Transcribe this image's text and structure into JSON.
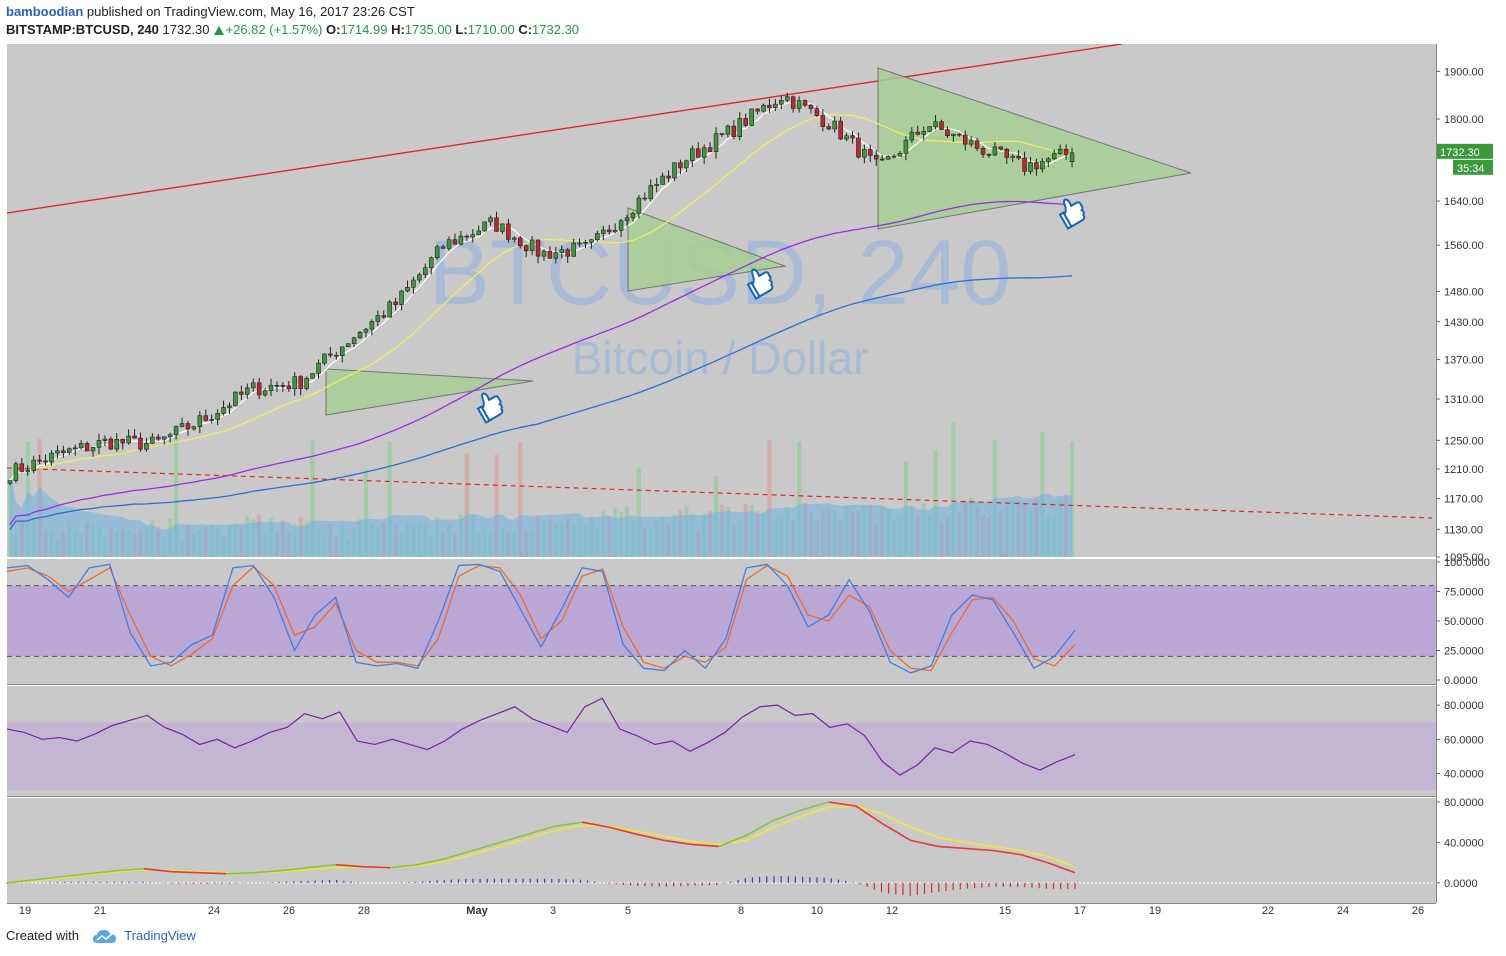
{
  "header": {
    "author": "bamboodian",
    "published_text": "published on TradingView.com, May 16, 2017 23:26 CST",
    "symbol": "BITSTAMP:BTCUSD, 240",
    "last": "1732.30",
    "change": "+26.82 (+1.57%)",
    "o_label": "O:",
    "o_value": "1714.99",
    "h_label": "H:",
    "h_value": "1735.00",
    "l_label": "L:",
    "l_value": "1710.00",
    "c_label": "C:",
    "c_value": "1732.30"
  },
  "footer": {
    "created_with": "Created with",
    "brand": "TradingView"
  },
  "watermark": {
    "symbol": "BTCUSD, 240",
    "name": "Bitcoin / Dollar"
  },
  "price_badge": {
    "value": "1732.30",
    "countdown": "35:34"
  },
  "colors": {
    "bull_candle": "#3a9a3a",
    "bear_candle": "#c0262b",
    "background": "#c9c9c9",
    "triangle_fill": "#a8cf95",
    "ma_white": "#ffffff",
    "ma_yellow": "#eded60",
    "ma_purple": "#9a2de0",
    "ma_blue": "#2b6fd6",
    "trend_red": "#e02424",
    "volume_green": "#9ccaa3",
    "volume_red": "#d6a5a5",
    "volume_ma": "#6cb3e3",
    "stoch_k": "#3f7fe6",
    "stoch_d": "#f06a2a",
    "stoch_band": "#b89fd9",
    "rsi_line": "#7b1fa2",
    "rsi_band": "#c2b4d4",
    "macd_fast_up": "#8bc34a",
    "macd_fast_down": "#e53935",
    "macd_signal": "#f0e637",
    "hist_up": "#3040c8",
    "hist_down": "#d32f2f",
    "hand_icon": "#1565c0"
  },
  "chart_data": [
    {
      "type": "candlestick",
      "title": "BITSTAMP:BTCUSD, 240",
      "x_tick_labels": [
        "19",
        "21",
        "24",
        "26",
        "28",
        "May",
        "3",
        "5",
        "8",
        "10",
        "12",
        "15",
        "17",
        "19",
        "22",
        "24",
        "26"
      ],
      "y_scale": "log",
      "y_tick_labels": [
        "1900.00",
        "1800.00",
        "1640.00",
        "1560.00",
        "1480.00",
        "1430.00",
        "1370.00",
        "1310.00",
        "1250.00",
        "1210.00",
        "1170.00",
        "1130.00",
        "1095.00"
      ],
      "y_ticks": [
        1900,
        1800,
        1640,
        1560,
        1480,
        1430,
        1370,
        1310,
        1250,
        1210,
        1170,
        1130,
        1095
      ],
      "ylim": [
        1095,
        1960
      ],
      "candle_count": 180,
      "period": "4H",
      "key_closes": [
        {
          "date": "Apr 18",
          "price": 1205
        },
        {
          "date": "Apr 20",
          "price": 1230
        },
        {
          "date": "Apr 21",
          "price": 1248
        },
        {
          "date": "Apr 24",
          "price": 1245
        },
        {
          "date": "Apr 26",
          "price": 1280
        },
        {
          "date": "Apr 27",
          "price": 1325
        },
        {
          "date": "Apr 30",
          "price": 1335
        },
        {
          "date": "May 1",
          "price": 1400
        },
        {
          "date": "May 2",
          "price": 1460
        },
        {
          "date": "May 4",
          "price": 1560
        },
        {
          "date": "May 5",
          "price": 1600
        },
        {
          "date": "May 6",
          "price": 1545
        },
        {
          "date": "May 7",
          "price": 1555
        },
        {
          "date": "May 8",
          "price": 1640
        },
        {
          "date": "May 9",
          "price": 1720
        },
        {
          "date": "May 10",
          "price": 1780
        },
        {
          "date": "May 11",
          "price": 1850
        },
        {
          "date": "May 12",
          "price": 1790
        },
        {
          "date": "May 13",
          "price": 1700
        },
        {
          "date": "May 14",
          "price": 1790
        },
        {
          "date": "May 15",
          "price": 1745
        },
        {
          "date": "May 16",
          "price": 1705
        },
        {
          "date": "May 17",
          "price": 1732.3
        }
      ],
      "last_candle": {
        "open": 1714.99,
        "high": 1735.0,
        "low": 1710.0,
        "close": 1732.3
      },
      "overlays": [
        "white fast MA",
        "yellow MA",
        "purple MA",
        "blue MA",
        "red trend line",
        "red dashed trend line",
        "three shaded symmetrical triangles",
        "volume histogram with moving average"
      ]
    },
    {
      "type": "line",
      "name": "stochastic",
      "y_tick_labels": [
        "100.0000",
        "75.0000",
        "50.0000",
        "25.0000",
        "0.0000"
      ],
      "ylim": [
        0,
        100
      ],
      "band": [
        20,
        80
      ],
      "series": [
        {
          "values": [
            95,
            97,
            85,
            70,
            95,
            98,
            40,
            12,
            15,
            30,
            38,
            95,
            97,
            70,
            25,
            55,
            70,
            15,
            12,
            14,
            10,
            50,
            97,
            98,
            92,
            60,
            28,
            60,
            95,
            92,
            30,
            10,
            8,
            25,
            10,
            35,
            95,
            98,
            80,
            45,
            55,
            85,
            58,
            15,
            6,
            12,
            55,
            72,
            68,
            40,
            10,
            20,
            42
          ]
        },
        {
          "values": [
            92,
            95,
            88,
            75,
            85,
            95,
            55,
            20,
            12,
            22,
            35,
            80,
            96,
            80,
            38,
            45,
            65,
            25,
            15,
            15,
            12,
            35,
            88,
            97,
            95,
            72,
            35,
            50,
            88,
            94,
            45,
            15,
            10,
            20,
            15,
            28,
            85,
            97,
            88,
            55,
            50,
            72,
            62,
            25,
            10,
            8,
            40,
            68,
            70,
            50,
            18,
            12,
            30
          ]
        }
      ]
    },
    {
      "type": "line",
      "name": "rsi",
      "y_tick_labels": [
        "80.0000",
        "60.0000",
        "40.0000"
      ],
      "ylim": [
        28,
        90
      ],
      "band": [
        30,
        70
      ],
      "values": [
        66,
        64,
        60,
        61,
        59,
        63,
        68,
        71,
        74,
        67,
        63,
        57,
        60,
        55,
        59,
        64,
        67,
        75,
        72,
        76,
        59,
        57,
        60,
        57,
        54,
        59,
        66,
        71,
        75,
        79,
        72,
        68,
        64,
        79,
        84,
        66,
        62,
        57,
        59,
        53,
        58,
        64,
        73,
        79,
        80,
        74,
        75,
        67,
        69,
        62,
        47,
        39,
        45,
        55,
        52,
        59,
        57,
        52,
        46,
        42,
        47,
        51
      ]
    },
    {
      "type": "line",
      "name": "macd",
      "y_tick_labels": [
        "80.0000",
        "40.0000",
        "0.0000"
      ],
      "ylim": [
        -18,
        82
      ],
      "series": [
        {
          "values": [
            0,
            3,
            6,
            9,
            12,
            14,
            11,
            10,
            9,
            10,
            12,
            15,
            18,
            16,
            15,
            18,
            24,
            32,
            40,
            48,
            56,
            60,
            55,
            48,
            42,
            38,
            36,
            47,
            62,
            72,
            80,
            76,
            58,
            42,
            36,
            34,
            32,
            28,
            20,
            10
          ]
        },
        {
          "values": [
            0,
            2,
            5,
            8,
            11,
            13,
            12,
            11,
            10,
            10,
            11,
            13,
            15,
            16,
            15,
            17,
            21,
            28,
            36,
            44,
            52,
            57,
            56,
            51,
            46,
            41,
            38,
            42,
            55,
            66,
            75,
            76,
            68,
            55,
            45,
            40,
            36,
            32,
            26,
            16
          ]
        }
      ],
      "histogram": [
        -1,
        0,
        1,
        1,
        1,
        1,
        -1,
        -1,
        -1,
        0,
        1,
        2,
        3,
        0,
        0,
        1,
        3,
        4,
        4,
        4,
        4,
        3,
        -1,
        -3,
        -4,
        -3,
        -2,
        5,
        7,
        6,
        5,
        0,
        -10,
        -13,
        -9,
        -6,
        -4,
        -4,
        -6,
        -6
      ]
    }
  ]
}
